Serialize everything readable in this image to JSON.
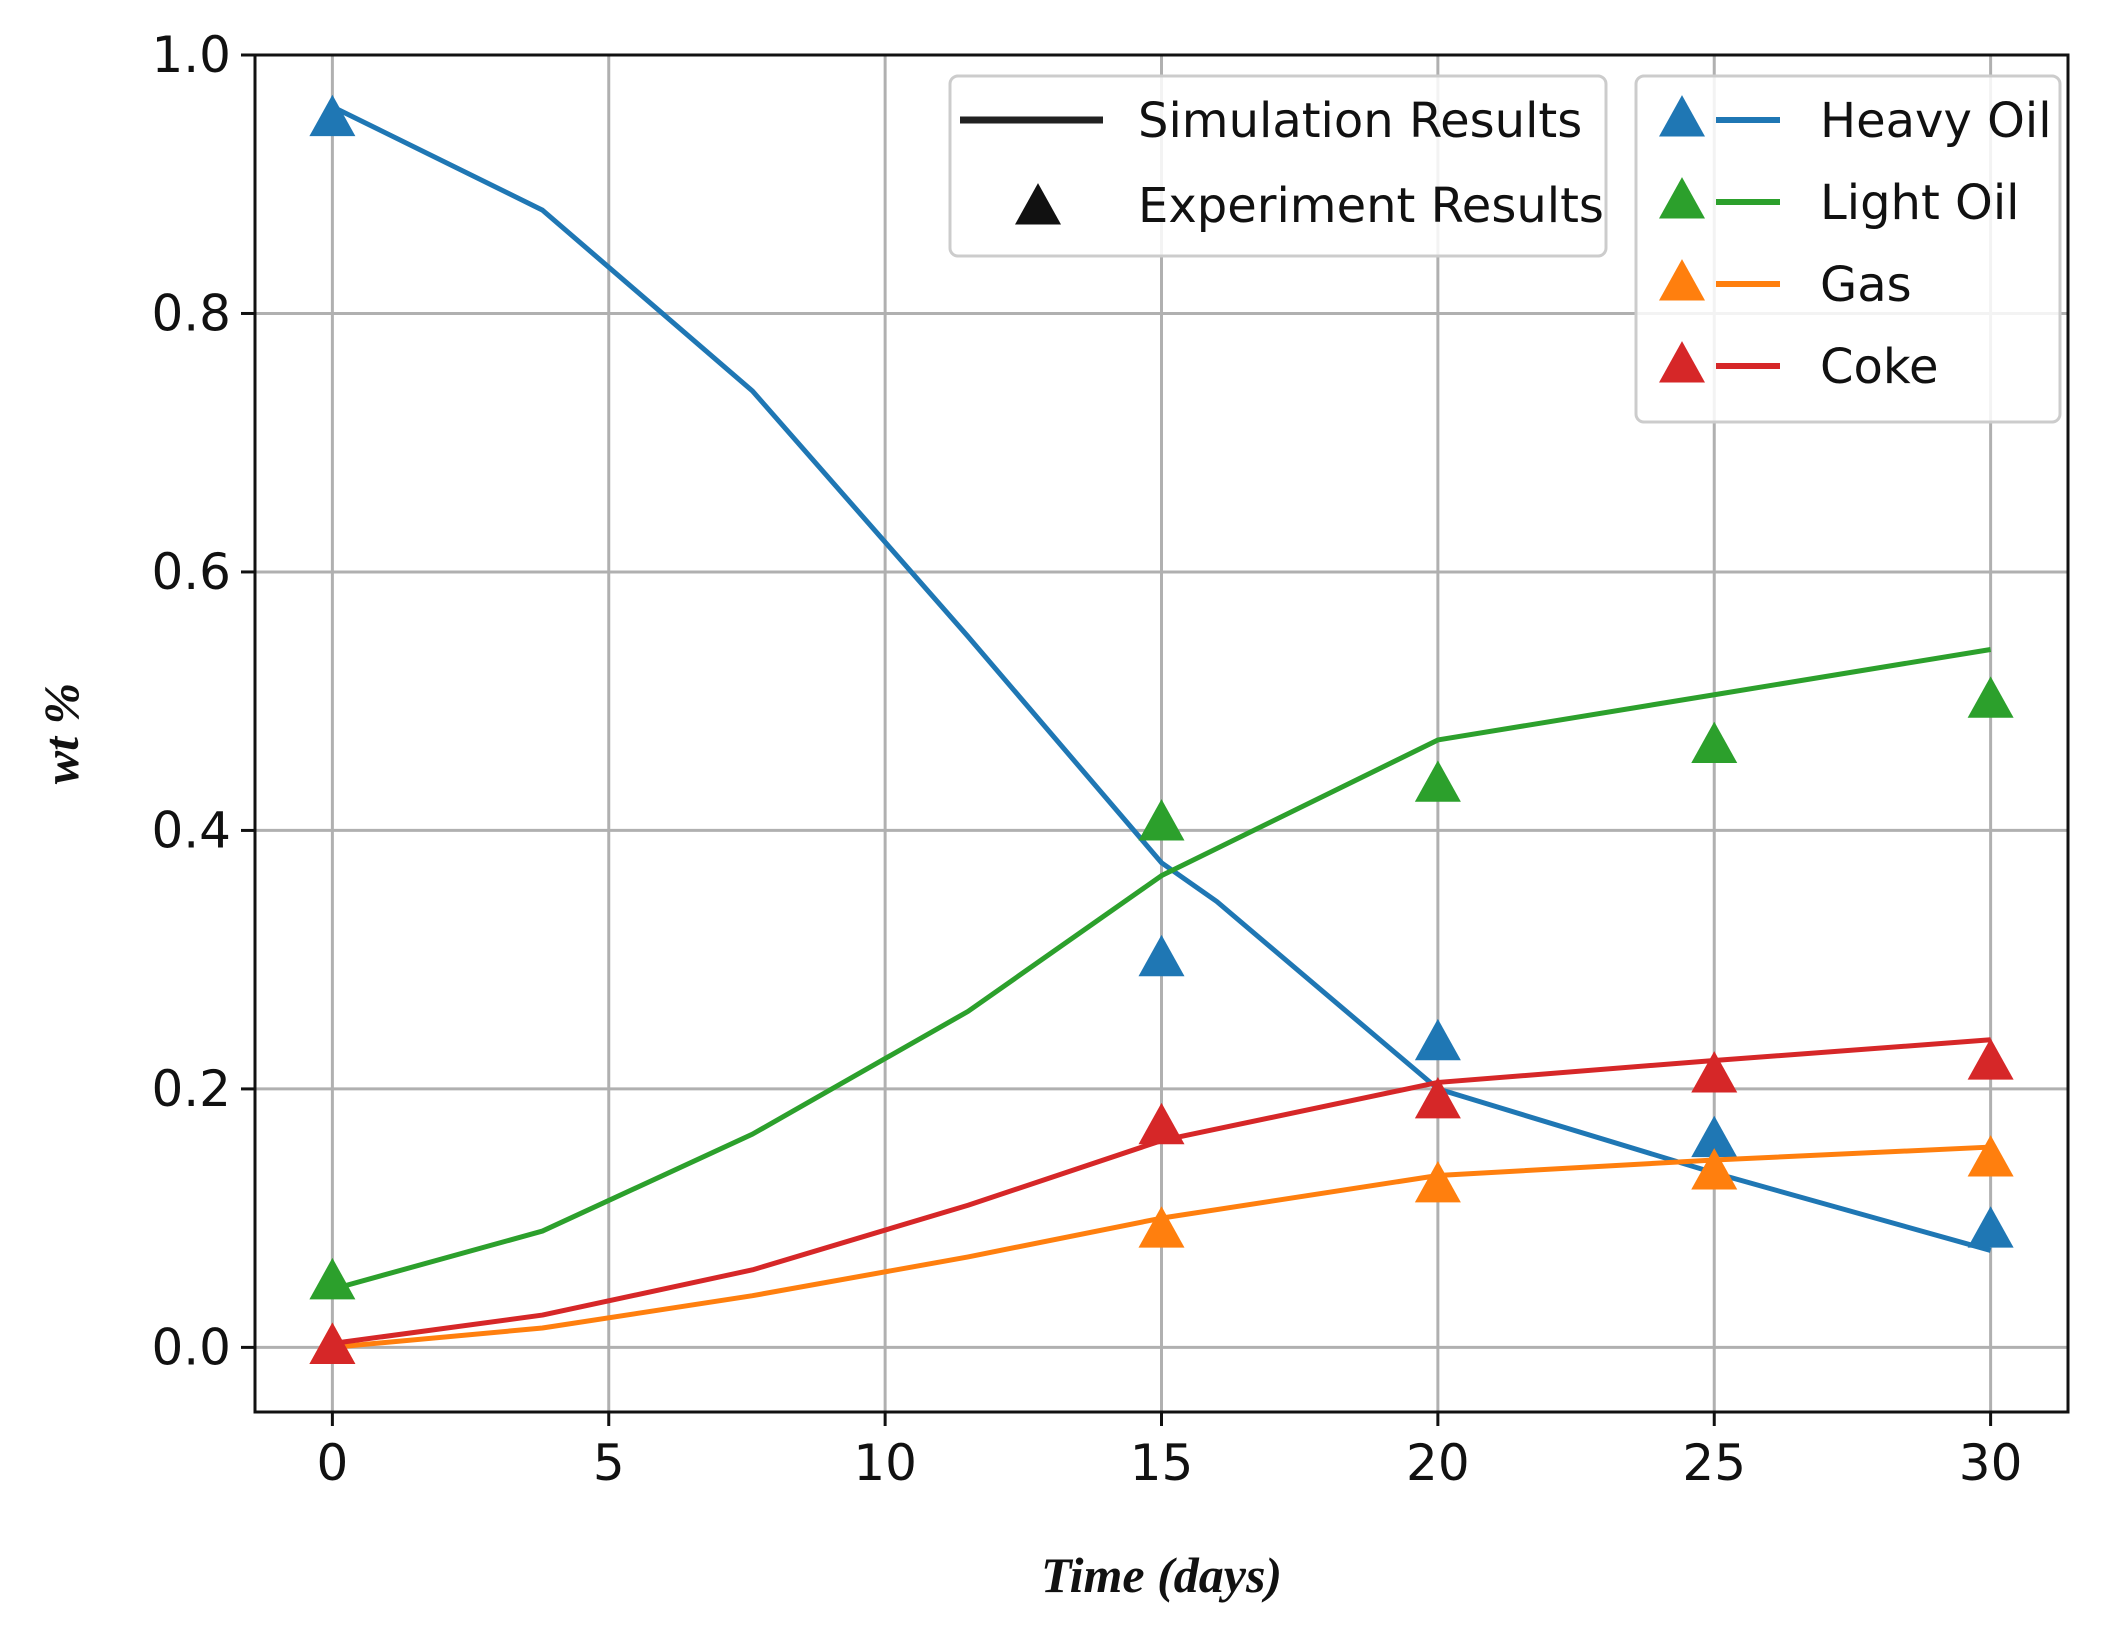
{
  "chart_data": {
    "type": "line",
    "xlabel": "Time (days)",
    "ylabel": "wt %",
    "xlim": [
      -1.4,
      31.4
    ],
    "ylim": [
      -0.05,
      1.0
    ],
    "xticks": [
      "0",
      "5",
      "10",
      "15",
      "20",
      "25",
      "30"
    ],
    "yticks": [
      "0.0",
      "0.2",
      "0.4",
      "0.6",
      "0.8",
      "1.0"
    ],
    "grid": true,
    "legend_style": {
      "location": "top-center",
      "entries": [
        {
          "label": "Simulation Results",
          "marker": "line"
        },
        {
          "label": "Experiment Results",
          "marker": "triangle"
        }
      ]
    },
    "legend_species": {
      "location": "top-right",
      "entries": [
        {
          "label": "Heavy Oil",
          "color": "#1f77b4"
        },
        {
          "label": "Light Oil",
          "color": "#2ca02c"
        },
        {
          "label": "Gas",
          "color": "#ff7f0e"
        },
        {
          "label": "Coke",
          "color": "#d62728"
        }
      ]
    },
    "series": [
      {
        "name": "Heavy Oil",
        "color": "#1f77b4",
        "simulation": {
          "x": [
            0,
            3.8,
            7.6,
            11.5,
            15,
            16,
            20,
            25,
            30
          ],
          "y": [
            0.96,
            0.88,
            0.74,
            0.55,
            0.375,
            0.345,
            0.2,
            0.135,
            0.075
          ]
        },
        "experiment": {
          "x": [
            0,
            15,
            20,
            25,
            30
          ],
          "y": [
            0.95,
            0.3,
            0.235,
            0.16,
            0.09
          ]
        }
      },
      {
        "name": "Light Oil",
        "color": "#2ca02c",
        "simulation": {
          "x": [
            0,
            3.8,
            7.6,
            11.5,
            15,
            20,
            25,
            30
          ],
          "y": [
            0.045,
            0.09,
            0.165,
            0.26,
            0.365,
            0.47,
            0.505,
            0.54
          ]
        },
        "experiment": {
          "x": [
            0,
            15,
            20,
            25,
            30
          ],
          "y": [
            0.05,
            0.405,
            0.435,
            0.465,
            0.5
          ]
        }
      },
      {
        "name": "Gas",
        "color": "#ff7f0e",
        "simulation": {
          "x": [
            0,
            3.8,
            7.6,
            11.5,
            15,
            20,
            25,
            30
          ],
          "y": [
            0.0,
            0.015,
            0.04,
            0.07,
            0.1,
            0.133,
            0.145,
            0.155
          ]
        },
        "experiment": {
          "x": [
            0,
            15,
            20,
            25,
            30
          ],
          "y": [
            0.0,
            0.09,
            0.125,
            0.135,
            0.145
          ]
        }
      },
      {
        "name": "Coke",
        "color": "#d62728",
        "simulation": {
          "x": [
            0,
            3.8,
            7.6,
            11.5,
            15,
            20,
            25,
            30
          ],
          "y": [
            0.003,
            0.025,
            0.06,
            0.11,
            0.16,
            0.205,
            0.222,
            0.238
          ]
        },
        "experiment": {
          "x": [
            0,
            15,
            20,
            25,
            30
          ],
          "y": [
            0.0,
            0.17,
            0.19,
            0.21,
            0.22
          ]
        }
      }
    ]
  }
}
